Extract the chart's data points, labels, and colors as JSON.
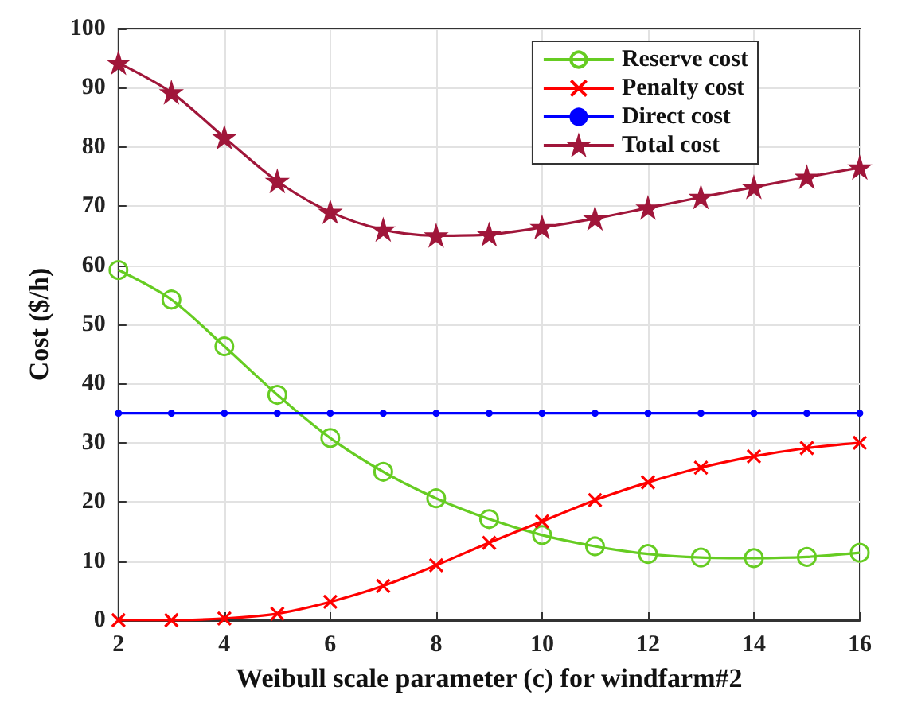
{
  "chart_data": {
    "type": "line",
    "xlabel": "Weibull scale parameter (c) for windfarm#2",
    "ylabel": "Cost ($/h)",
    "x": [
      2,
      3,
      4,
      5,
      6,
      7,
      8,
      9,
      10,
      11,
      12,
      13,
      14,
      15,
      16
    ],
    "series": [
      {
        "name": "Reserve cost",
        "color": "#66cc22",
        "marker": "circle",
        "values": [
          59.2,
          54.2,
          46.3,
          38.1,
          30.8,
          25.1,
          20.6,
          17.1,
          14.4,
          12.5,
          11.2,
          10.6,
          10.5,
          10.7,
          11.4
        ]
      },
      {
        "name": "Penalty cost",
        "color": "#ff0000",
        "marker": "cross",
        "values": [
          0,
          0,
          0.3,
          1.1,
          3.1,
          5.8,
          9.3,
          13.1,
          16.7,
          20.3,
          23.3,
          25.8,
          27.7,
          29.1,
          30
        ]
      },
      {
        "name": "Direct cost",
        "color": "#0000ff",
        "marker": "point",
        "values": [
          35,
          35,
          35,
          35,
          35,
          35,
          35,
          35,
          35,
          35,
          35,
          35,
          35,
          35,
          35
        ]
      },
      {
        "name": "Total cost",
        "color": "#a0163a",
        "marker": "star",
        "values": [
          94.2,
          89.2,
          81.6,
          74.2,
          69,
          66,
          65,
          65.2,
          66.4,
          67.9,
          69.7,
          71.5,
          73.2,
          74.9,
          76.5
        ]
      }
    ],
    "xlim": [
      2,
      16
    ],
    "xticks": [
      2,
      4,
      6,
      8,
      10,
      12,
      14,
      16
    ],
    "ylim": [
      0,
      100
    ],
    "yticks": [
      0,
      10,
      20,
      30,
      40,
      50,
      60,
      70,
      80,
      90,
      100
    ],
    "grid": true,
    "legend": "top right",
    "line_style": "solid"
  }
}
